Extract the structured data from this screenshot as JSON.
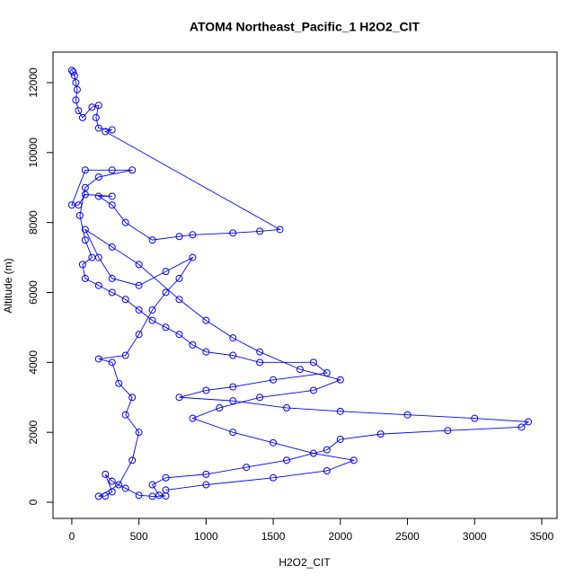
{
  "chart_data": {
    "type": "line",
    "marker": "open-circle",
    "title": "ATOM4 Northeast_Pacific_1 H2O2_CIT",
    "x_label": "H2O2_CIT",
    "y_label": "Altitude (m)",
    "color": "#0000ff",
    "x": [
      0,
      10,
      20,
      30,
      40,
      30,
      50,
      80,
      150,
      200,
      180,
      200,
      300,
      250,
      1550,
      1400,
      1200,
      900,
      800,
      600,
      400,
      300,
      200,
      300,
      100,
      50,
      0,
      100,
      300,
      450,
      200,
      100,
      60,
      100,
      150,
      80,
      100,
      200,
      300,
      400,
      500,
      600,
      700,
      800,
      900,
      1000,
      1200,
      1400,
      1800,
      1900,
      1500,
      1200,
      1000,
      800,
      1200,
      1600,
      2000,
      2500,
      3000,
      3400,
      3350,
      2800,
      2300,
      2000,
      1900,
      1600,
      1300,
      1000,
      700,
      600,
      650,
      700,
      600,
      500,
      400,
      300,
      250,
      300,
      250,
      200,
      350,
      450,
      500,
      400,
      450,
      350,
      300,
      200,
      400,
      500,
      600,
      700,
      800,
      900,
      700,
      500,
      300,
      200,
      100,
      300,
      500,
      800,
      1000,
      1200,
      1400,
      1700,
      2000,
      1800,
      1400,
      1100,
      900,
      1200,
      1500,
      1800,
      2100,
      1900,
      1500,
      1000,
      700
    ],
    "y": [
      12350,
      12300,
      12200,
      12000,
      11800,
      11500,
      11200,
      11000,
      11300,
      11350,
      11000,
      10700,
      10650,
      10600,
      7800,
      7750,
      7700,
      7650,
      7600,
      7500,
      8000,
      8500,
      8750,
      8750,
      8800,
      8500,
      8500,
      9500,
      9500,
      9500,
      9300,
      9000,
      8200,
      7500,
      7000,
      6800,
      6400,
      6200,
      6000,
      5800,
      5500,
      5200,
      5000,
      4800,
      4500,
      4300,
      4200,
      4000,
      4000,
      3700,
      3500,
      3300,
      3200,
      3000,
      2900,
      2700,
      2600,
      2500,
      2400,
      2300,
      2150,
      2050,
      1950,
      1800,
      1500,
      1200,
      1000,
      800,
      700,
      500,
      200,
      180,
      170,
      200,
      400,
      600,
      800,
      300,
      180,
      170,
      500,
      1200,
      2000,
      2500,
      3000,
      3400,
      4000,
      4100,
      4200,
      4800,
      5500,
      6000,
      6400,
      7000,
      6600,
      6200,
      6400,
      7000,
      7800,
      7300,
      6800,
      5800,
      5200,
      4700,
      4300,
      3800,
      3500,
      3200,
      3000,
      2700,
      2400,
      2000,
      1700,
      1400,
      1200,
      900,
      700,
      500,
      350
    ],
    "xlim": [
      -140,
      3614
    ],
    "ylim": [
      -462,
      12873
    ],
    "xticks": [
      0,
      500,
      1000,
      1500,
      2000,
      2500,
      3000,
      3500
    ],
    "yticks": [
      0,
      2000,
      4000,
      6000,
      8000,
      10000,
      12000
    ]
  }
}
